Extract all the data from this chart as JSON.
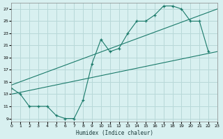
{
  "xlabel": "Humidex (Indice chaleur)",
  "bg_color": "#d8f0f0",
  "grid_color": "#b8d8d8",
  "line_color": "#1a7a6a",
  "xlim": [
    0,
    23
  ],
  "ylim": [
    8.5,
    28
  ],
  "xticks": [
    0,
    1,
    2,
    3,
    4,
    5,
    6,
    7,
    8,
    9,
    10,
    11,
    12,
    13,
    14,
    15,
    16,
    17,
    18,
    19,
    20,
    21,
    22,
    23
  ],
  "yticks": [
    9,
    11,
    13,
    15,
    17,
    19,
    21,
    23,
    25,
    27
  ],
  "line1_x": [
    0,
    1,
    2,
    3,
    4,
    5,
    6,
    7,
    8,
    9,
    10,
    11,
    12,
    13,
    14,
    15,
    16,
    17,
    18,
    19,
    20,
    21,
    22
  ],
  "line1_y": [
    14,
    13,
    11,
    11,
    11,
    9.5,
    9,
    9,
    12,
    18,
    22,
    20,
    20.5,
    23,
    25,
    25,
    26,
    27.5,
    27.5,
    27,
    25,
    25,
    20
  ],
  "line2_x": [
    0,
    23
  ],
  "line2_y": [
    13,
    20
  ],
  "line3_x": [
    0,
    23
  ],
  "line3_y": [
    14.5,
    27
  ]
}
